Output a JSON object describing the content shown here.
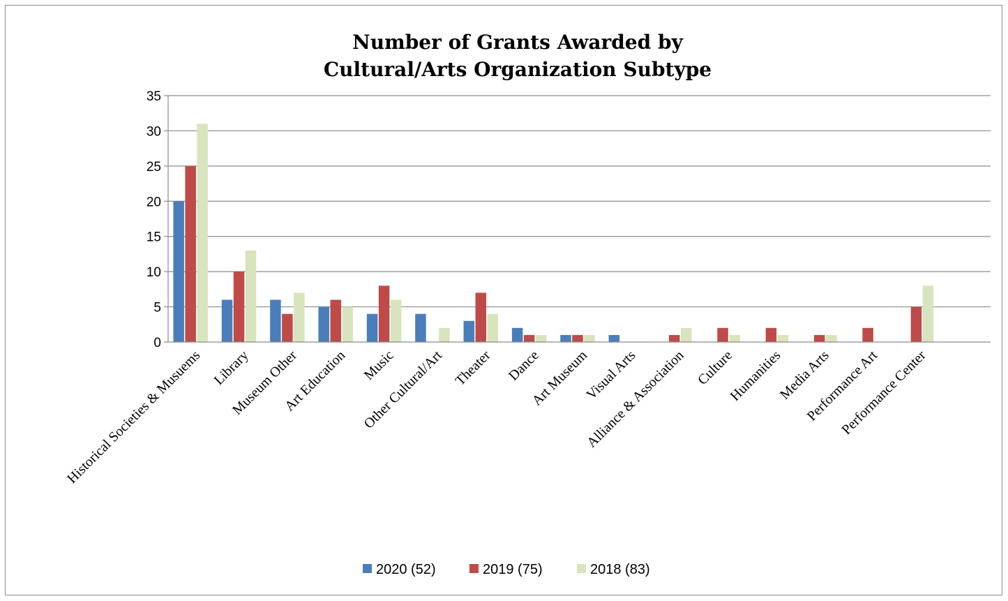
{
  "chart_data": {
    "type": "bar",
    "title": [
      "Number of Grants Awarded by",
      "Cultural/Arts Organization Subtype"
    ],
    "xlabel": "",
    "ylabel": "",
    "ylim": [
      0,
      35
    ],
    "yticks": [
      "0",
      "5",
      "10",
      "15",
      "20",
      "25",
      "30",
      "35"
    ],
    "grid": true,
    "legend_position": "bottom",
    "categories": [
      "Historical Societies & Musuems",
      "Library",
      "Museum Other",
      "Art Education",
      "Music",
      "Other Cultural/Art",
      "Theater",
      "Dance",
      "Art Museum",
      "Visual Arts",
      "Alliance & Association",
      "Culture",
      "Humanities",
      "Media Arts",
      "Performance Art",
      "Performance Center",
      ""
    ],
    "series": [
      {
        "name": "2020 (52)",
        "color": "#4a7ebb",
        "values": [
          20,
          6,
          6,
          5,
          4,
          4,
          3,
          2,
          1,
          1,
          0,
          0,
          0,
          0,
          0,
          0,
          0
        ]
      },
      {
        "name": "2019 (75)",
        "color": "#be4b48",
        "values": [
          25,
          10,
          4,
          6,
          8,
          0,
          7,
          1,
          1,
          0,
          1,
          2,
          2,
          1,
          2,
          5,
          0
        ]
      },
      {
        "name": "2018 (83)",
        "color": "#d7e4bd",
        "values": [
          31,
          13,
          7,
          5,
          6,
          2,
          4,
          1,
          1,
          0,
          2,
          1,
          1,
          1,
          0,
          8,
          0
        ]
      }
    ]
  }
}
